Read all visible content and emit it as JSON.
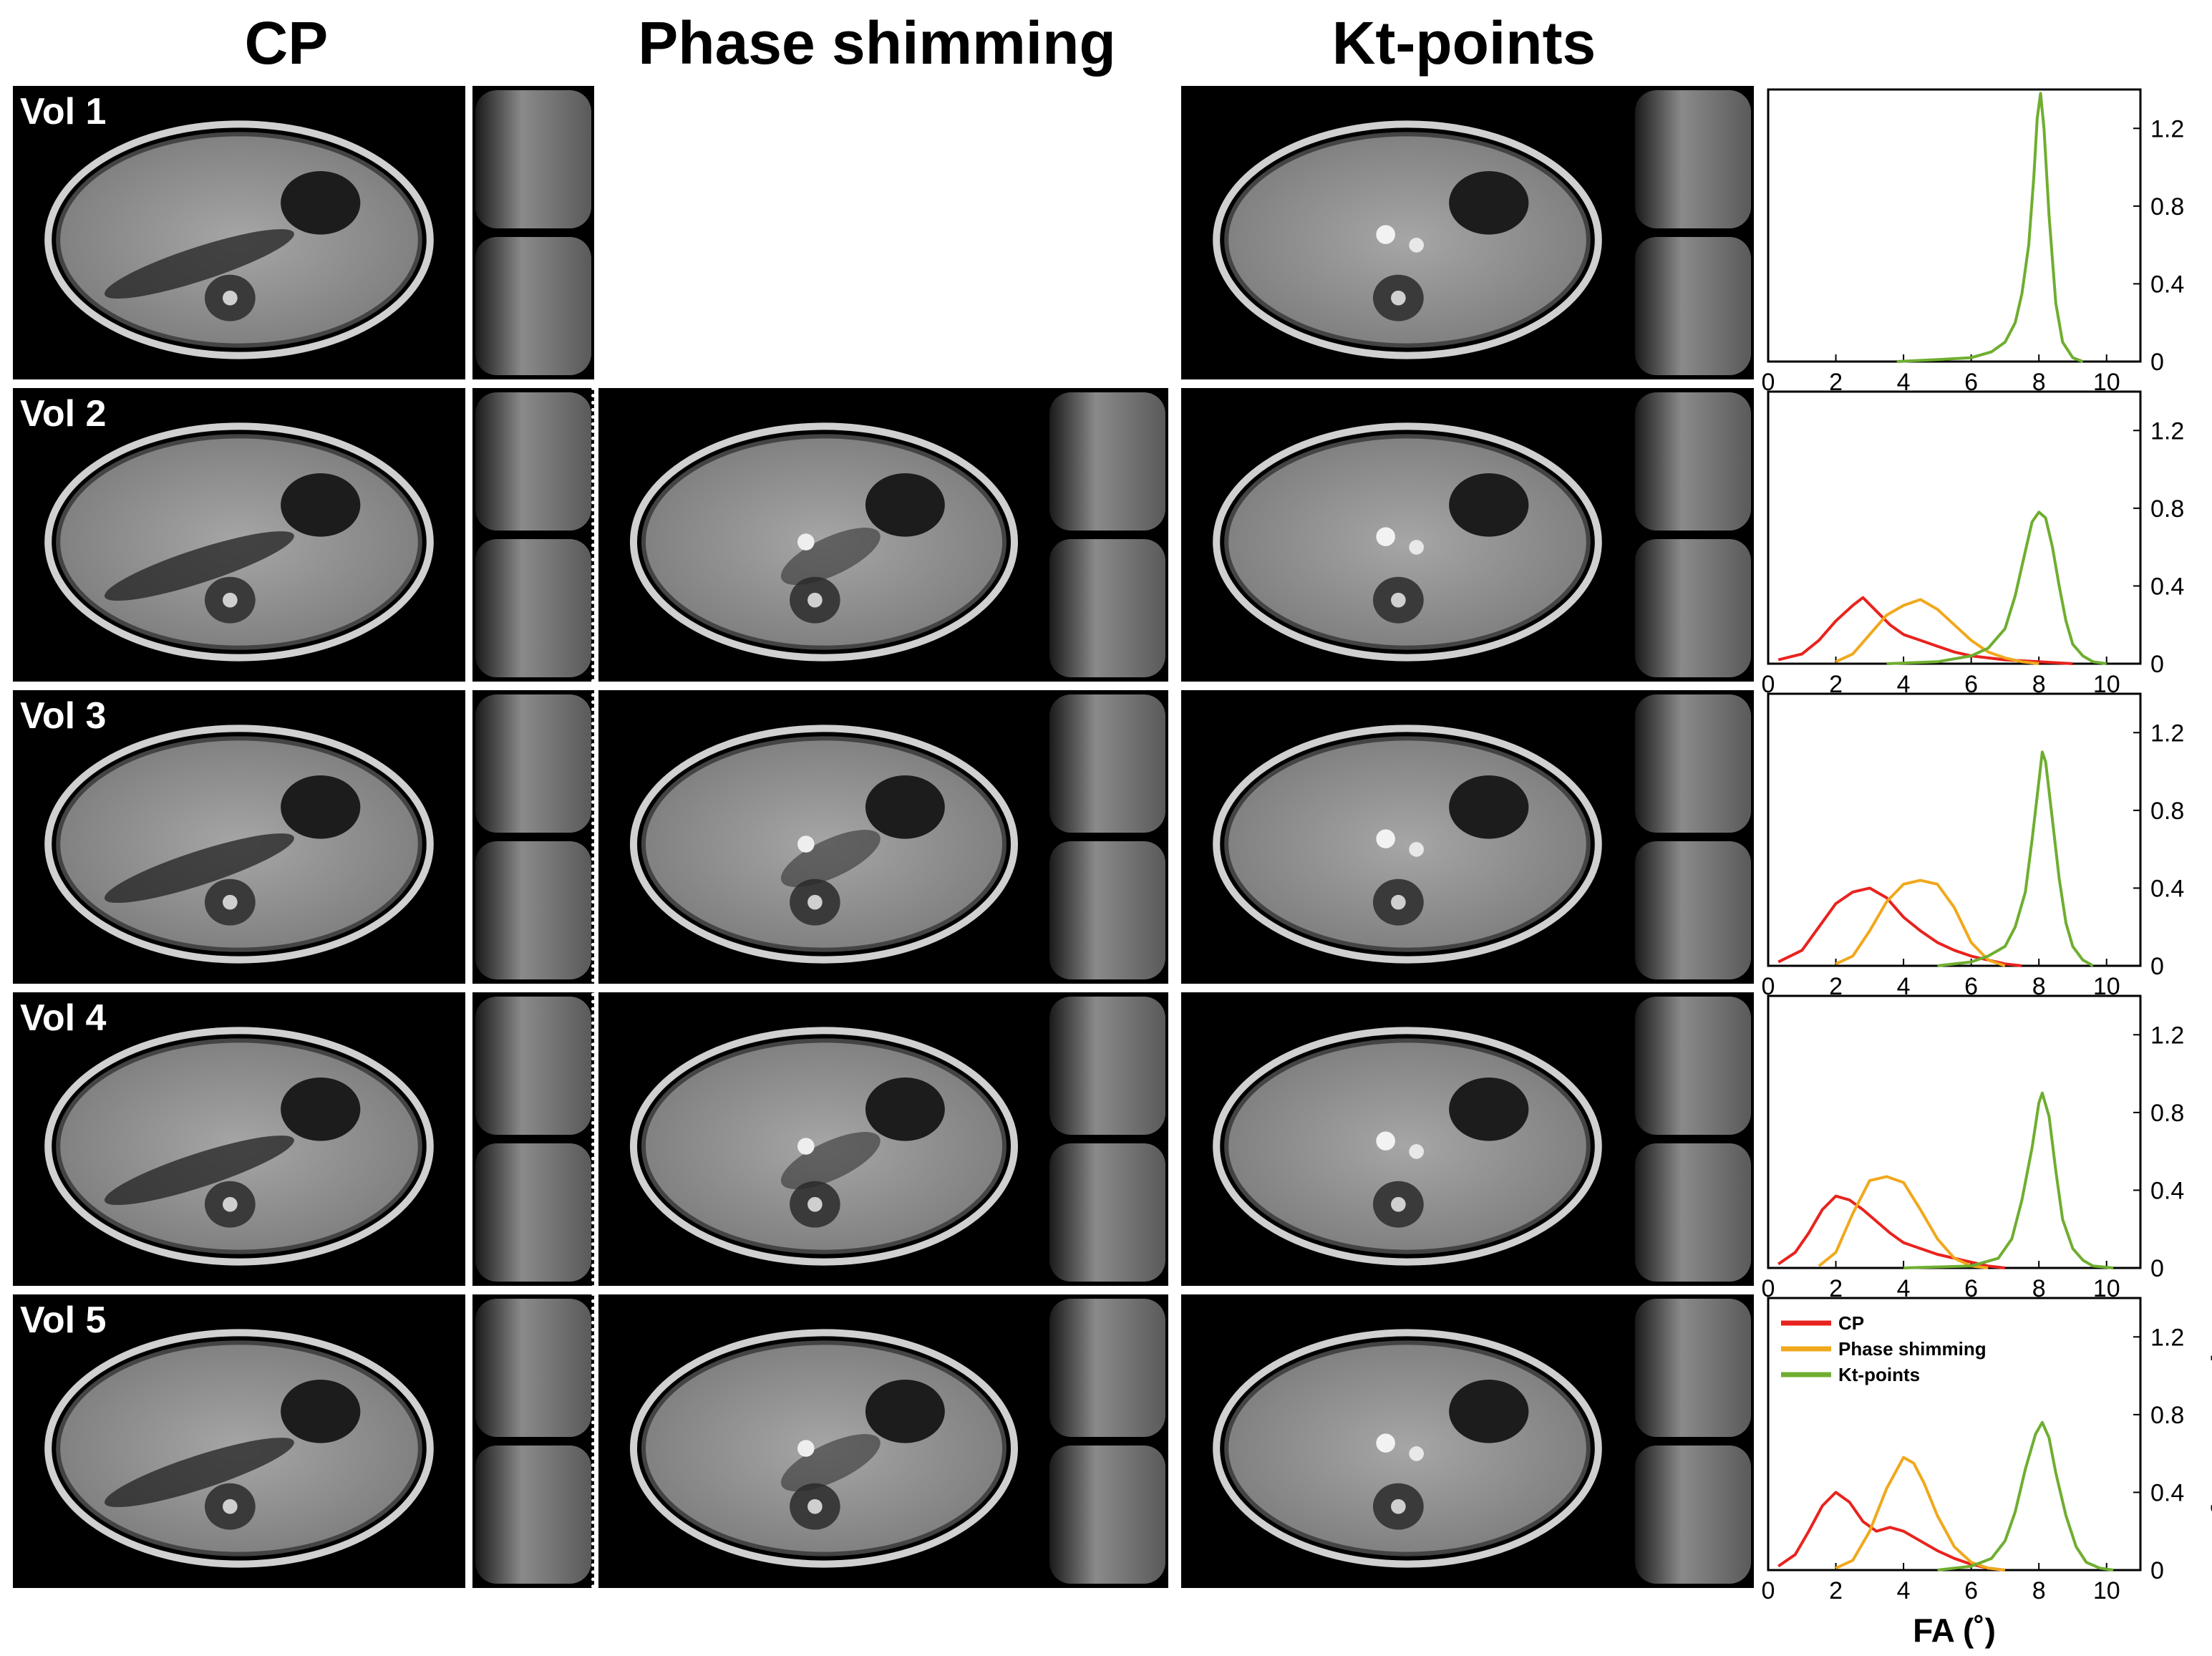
{
  "columns": [
    "CP",
    "Phase shimming",
    "Kt-points"
  ],
  "rows": [
    "Vol 1",
    "Vol 2",
    "Vol 3",
    "Vol 4",
    "Vol 5"
  ],
  "colors": {
    "CP": "#e8231e",
    "Phase shimming": "#f0a81c",
    "Kt-points": "#6fae30"
  },
  "chart_data": {
    "type": "line",
    "xlabel": "FA (˚)",
    "ylabel": "FA probability",
    "xlim": [
      0,
      11
    ],
    "ylim": [
      0,
      1.4
    ],
    "xticks": [
      "0",
      "2",
      "4",
      "6",
      "8",
      "10"
    ],
    "yticks": [
      "0",
      "0.4",
      "0.8",
      "1.2"
    ],
    "legend": [
      "CP",
      "Phase shimming",
      "Kt-points"
    ],
    "panels": [
      {
        "name": "Vol 1",
        "series": [
          {
            "name": "Kt-points",
            "x": [
              3.8,
              5.0,
              6.0,
              6.6,
              7.0,
              7.3,
              7.5,
              7.7,
              7.85,
              7.95,
              8.05,
              8.15,
              8.3,
              8.5,
              8.7,
              9.0,
              9.3
            ],
            "y": [
              0,
              0.01,
              0.02,
              0.05,
              0.1,
              0.2,
              0.35,
              0.6,
              0.95,
              1.25,
              1.38,
              1.2,
              0.75,
              0.3,
              0.1,
              0.02,
              0
            ]
          }
        ]
      },
      {
        "name": "Vol 2",
        "series": [
          {
            "name": "CP",
            "x": [
              0.3,
              1.0,
              1.5,
              2.0,
              2.5,
              2.8,
              3.2,
              3.6,
              4.0,
              4.5,
              5.0,
              5.5,
              6.0,
              6.5,
              7.0,
              8.0,
              9.0
            ],
            "y": [
              0.02,
              0.05,
              0.12,
              0.22,
              0.3,
              0.34,
              0.27,
              0.2,
              0.15,
              0.12,
              0.09,
              0.06,
              0.04,
              0.03,
              0.02,
              0.01,
              0
            ]
          },
          {
            "name": "Phase shimming",
            "x": [
              2.0,
              2.5,
              3.0,
              3.5,
              4.0,
              4.5,
              5.0,
              5.5,
              6.0,
              6.5,
              7.0,
              7.5,
              8.0
            ],
            "y": [
              0.01,
              0.05,
              0.15,
              0.25,
              0.3,
              0.33,
              0.28,
              0.2,
              0.12,
              0.06,
              0.03,
              0.01,
              0
            ]
          },
          {
            "name": "Kt-points",
            "x": [
              3.5,
              5.0,
              6.0,
              6.5,
              7.0,
              7.3,
              7.6,
              7.8,
              8.0,
              8.2,
              8.4,
              8.6,
              8.8,
              9.0,
              9.3,
              9.6,
              10.0
            ],
            "y": [
              0,
              0.01,
              0.04,
              0.08,
              0.18,
              0.35,
              0.58,
              0.73,
              0.78,
              0.75,
              0.6,
              0.4,
              0.22,
              0.1,
              0.04,
              0.01,
              0
            ]
          }
        ]
      },
      {
        "name": "Vol 3",
        "series": [
          {
            "name": "CP",
            "x": [
              0.3,
              1.0,
              1.5,
              2.0,
              2.5,
              3.0,
              3.5,
              4.0,
              4.5,
              5.0,
              5.5,
              6.0,
              6.5,
              7.0,
              7.5
            ],
            "y": [
              0.02,
              0.08,
              0.2,
              0.32,
              0.38,
              0.4,
              0.35,
              0.25,
              0.18,
              0.12,
              0.08,
              0.05,
              0.03,
              0.01,
              0
            ]
          },
          {
            "name": "Phase shimming",
            "x": [
              2.0,
              2.5,
              3.0,
              3.5,
              4.0,
              4.5,
              5.0,
              5.5,
              6.0,
              6.5,
              7.0
            ],
            "y": [
              0.01,
              0.05,
              0.18,
              0.33,
              0.42,
              0.44,
              0.42,
              0.3,
              0.12,
              0.03,
              0
            ]
          },
          {
            "name": "Kt-points",
            "x": [
              5.0,
              6.0,
              6.5,
              7.0,
              7.3,
              7.6,
              7.8,
              8.0,
              8.1,
              8.2,
              8.4,
              8.6,
              8.8,
              9.0,
              9.3,
              9.6
            ],
            "y": [
              0,
              0.02,
              0.05,
              0.1,
              0.2,
              0.38,
              0.65,
              0.95,
              1.1,
              1.05,
              0.75,
              0.45,
              0.22,
              0.1,
              0.03,
              0
            ]
          }
        ]
      },
      {
        "name": "Vol 4",
        "series": [
          {
            "name": "CP",
            "x": [
              0.3,
              0.8,
              1.2,
              1.6,
              2.0,
              2.4,
              2.8,
              3.2,
              3.6,
              4.0,
              4.5,
              5.0,
              5.5,
              6.0,
              6.5,
              7.0
            ],
            "y": [
              0.02,
              0.08,
              0.18,
              0.3,
              0.37,
              0.35,
              0.3,
              0.24,
              0.18,
              0.13,
              0.1,
              0.07,
              0.05,
              0.03,
              0.01,
              0
            ]
          },
          {
            "name": "Phase shimming",
            "x": [
              1.5,
              2.0,
              2.5,
              3.0,
              3.5,
              4.0,
              4.5,
              5.0,
              5.5,
              6.0,
              6.5
            ],
            "y": [
              0.01,
              0.08,
              0.28,
              0.45,
              0.47,
              0.44,
              0.3,
              0.15,
              0.05,
              0.01,
              0
            ]
          },
          {
            "name": "Kt-points",
            "x": [
              4.0,
              6.0,
              6.8,
              7.2,
              7.5,
              7.8,
              8.0,
              8.1,
              8.3,
              8.5,
              8.7,
              9.0,
              9.3,
              9.6,
              10.2
            ],
            "y": [
              0,
              0.01,
              0.05,
              0.15,
              0.35,
              0.62,
              0.85,
              0.9,
              0.78,
              0.5,
              0.25,
              0.1,
              0.04,
              0.01,
              0
            ]
          }
        ]
      },
      {
        "name": "Vol 5",
        "series": [
          {
            "name": "CP",
            "x": [
              0.3,
              0.8,
              1.2,
              1.6,
              2.0,
              2.4,
              2.8,
              3.2,
              3.6,
              4.0,
              4.5,
              5.0,
              5.5,
              6.0,
              6.5,
              7.0
            ],
            "y": [
              0.02,
              0.08,
              0.2,
              0.33,
              0.4,
              0.35,
              0.25,
              0.2,
              0.22,
              0.2,
              0.15,
              0.1,
              0.06,
              0.03,
              0.01,
              0
            ]
          },
          {
            "name": "Phase shimming",
            "x": [
              2.0,
              2.5,
              3.0,
              3.5,
              4.0,
              4.3,
              4.6,
              5.0,
              5.5,
              6.0,
              6.5,
              7.0
            ],
            "y": [
              0.01,
              0.05,
              0.2,
              0.42,
              0.58,
              0.55,
              0.45,
              0.28,
              0.12,
              0.04,
              0.01,
              0
            ]
          },
          {
            "name": "Kt-points",
            "x": [
              5.0,
              6.0,
              6.6,
              7.0,
              7.3,
              7.6,
              7.9,
              8.1,
              8.3,
              8.5,
              8.8,
              9.1,
              9.4,
              9.8,
              10.2
            ],
            "y": [
              0,
              0.02,
              0.06,
              0.15,
              0.3,
              0.52,
              0.7,
              0.76,
              0.68,
              0.5,
              0.28,
              0.12,
              0.04,
              0.01,
              0
            ]
          }
        ]
      }
    ]
  }
}
